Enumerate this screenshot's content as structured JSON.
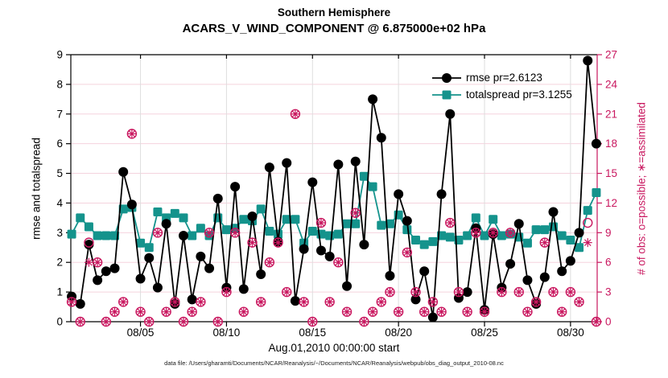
{
  "figure": {
    "footer": "data file: /Users/gharamti/Documents/NCAR/Reanalysis/~/Documents/NCAR/Reanalysis/webpub/obs_diag_output_2010-08.nc"
  },
  "chart_data": {
    "type": "line",
    "title": "Southern Hemisphere",
    "subtitle": "ACARS_V_WIND_COMPONENT @ 6.875000e+02 hPa",
    "xlabel": "Aug.01,2010 00:00:00 start",
    "ylabel_left": "rmse and totalspread",
    "ylabel_right": "# of obs: o=possible; ∗=assimilated",
    "xlim_days": [
      0.95,
      31.55
    ],
    "ylim_left": [
      0,
      9
    ],
    "ylim_right": [
      0,
      27
    ],
    "yticks_left": [
      0,
      1,
      2,
      3,
      4,
      5,
      6,
      7,
      8,
      9
    ],
    "yticks_right": [
      0,
      3,
      6,
      9,
      12,
      15,
      18,
      21,
      24,
      27
    ],
    "xtick_days": [
      5,
      10,
      15,
      20,
      25,
      30
    ],
    "xtick_labels": [
      "08/05",
      "08/10",
      "08/15",
      "08/20",
      "08/25",
      "08/30"
    ],
    "grid": {
      "horizontal_color": "#f5d3de",
      "vertical_color": "#dedede"
    },
    "axis_colors": {
      "left": "#000000",
      "right": "#c9175f"
    },
    "legend_position": "top-right-inside",
    "x_days": [
      1,
      1.5,
      2,
      2.5,
      3,
      3.5,
      4,
      4.5,
      5,
      5.5,
      6,
      6.5,
      7,
      7.5,
      8,
      8.5,
      9,
      9.5,
      10,
      10.5,
      11,
      11.5,
      12,
      12.5,
      13,
      13.5,
      14,
      14.5,
      15,
      15.5,
      16,
      16.5,
      17,
      17.5,
      18,
      18.5,
      19,
      19.5,
      20,
      20.5,
      21,
      21.5,
      22,
      22.5,
      23,
      23.5,
      24,
      24.5,
      25,
      25.5,
      26,
      26.5,
      27,
      27.5,
      28,
      28.5,
      29,
      29.5,
      30,
      30.5,
      31,
      31.5
    ],
    "series": [
      {
        "name": "rmse",
        "legend": "rmse pr=2.6123",
        "color": "#000000",
        "marker": "circle",
        "values": [
          0.85,
          0.6,
          2.6,
          1.4,
          1.7,
          1.8,
          5.05,
          3.95,
          1.45,
          2.15,
          1.15,
          3.3,
          0.6,
          2.9,
          0.75,
          2.2,
          1.8,
          4.15,
          1.15,
          4.55,
          1.1,
          3.55,
          1.6,
          5.2,
          2.7,
          5.35,
          0.7,
          2.45,
          4.7,
          2.4,
          2.2,
          5.3,
          1.2,
          5.4,
          2.6,
          7.5,
          6.2,
          1.55,
          4.3,
          3.4,
          0.75,
          1.7,
          0.15,
          4.3,
          7.0,
          0.8,
          1.0,
          3.15,
          0.4,
          2.95,
          1.15,
          1.95,
          3.3,
          1.4,
          0.6,
          1.5,
          3.7,
          1.7,
          2.05,
          3.0,
          8.8,
          6.0
        ]
      },
      {
        "name": "totalspread",
        "legend": "totalspread pr=3.1255",
        "color": "#14938c",
        "marker": "square",
        "values": [
          2.95,
          3.5,
          3.2,
          2.9,
          2.9,
          2.9,
          3.8,
          3.85,
          2.65,
          2.5,
          3.7,
          3.5,
          3.65,
          3.5,
          2.9,
          3.15,
          2.9,
          3.5,
          3.1,
          3.15,
          3.45,
          3.4,
          3.8,
          3.05,
          2.95,
          3.45,
          3.45,
          2.65,
          3.05,
          2.95,
          2.9,
          2.95,
          3.3,
          3.3,
          4.9,
          4.55,
          3.25,
          3.3,
          3.6,
          3.1,
          2.75,
          2.6,
          2.7,
          2.9,
          2.85,
          2.75,
          2.9,
          3.5,
          2.9,
          3.45,
          2.9,
          2.95,
          2.85,
          2.65,
          3.1,
          3.1,
          3.2,
          2.9,
          2.75,
          2.5,
          3.75,
          4.35
        ]
      }
    ],
    "obs_counts": {
      "color": "#c9175f",
      "axis": "right",
      "possible_marker": "circle",
      "assimilated_marker": "asterisk",
      "possible": [
        2,
        0,
        8,
        6,
        0,
        1,
        2,
        19,
        1,
        0,
        9,
        1,
        2,
        0,
        1,
        2,
        9,
        0,
        3,
        9,
        1,
        8,
        2,
        6,
        8,
        3,
        21,
        2,
        0,
        10,
        2,
        6,
        1,
        11,
        0,
        1,
        2,
        3,
        1,
        7,
        3,
        1,
        2,
        1,
        10,
        3,
        1,
        9,
        1,
        9,
        3,
        9,
        3,
        1,
        2,
        8,
        3,
        1,
        3,
        2,
        10,
        0
      ],
      "assimilated": [
        2,
        0,
        6,
        6,
        0,
        1,
        2,
        19,
        1,
        0,
        9,
        1,
        2,
        0,
        1,
        2,
        9,
        0,
        3,
        9,
        1,
        8,
        2,
        6,
        8,
        3,
        21,
        2,
        0,
        10,
        2,
        6,
        1,
        11,
        0,
        1,
        2,
        3,
        1,
        7,
        3,
        1,
        2,
        1,
        10,
        3,
        1,
        9,
        1,
        9,
        3,
        9,
        3,
        1,
        2,
        8,
        3,
        1,
        3,
        2,
        8,
        0
      ]
    }
  }
}
